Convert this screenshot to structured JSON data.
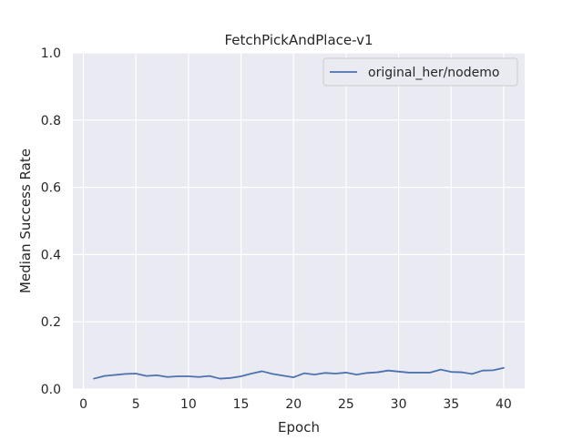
{
  "chart_data": {
    "type": "line",
    "title": "FetchPickAndPlace-v1",
    "xlabel": "Epoch",
    "ylabel": "Median Success Rate",
    "xlim": [
      -1,
      42
    ],
    "ylim": [
      0.0,
      1.0
    ],
    "xticks": [
      0,
      5,
      10,
      15,
      20,
      25,
      30,
      35,
      40
    ],
    "xtick_labels": [
      "0",
      "5",
      "10",
      "15",
      "20",
      "25",
      "30",
      "35",
      "40"
    ],
    "yticks": [
      0.0,
      0.2,
      0.4,
      0.6,
      0.8,
      1.0
    ],
    "ytick_labels": [
      "0.0",
      "0.2",
      "0.4",
      "0.6",
      "0.8",
      "1.0"
    ],
    "grid": true,
    "legend_position": "top-right",
    "background_color": "#eaeaf2",
    "series": [
      {
        "name": "original_her/nodemo",
        "color": "#4c72b0",
        "x": [
          1,
          2,
          3,
          4,
          5,
          6,
          7,
          8,
          9,
          10,
          11,
          12,
          13,
          14,
          15,
          16,
          17,
          18,
          19,
          20,
          21,
          22,
          23,
          24,
          25,
          26,
          27,
          28,
          29,
          30,
          31,
          32,
          33,
          34,
          35,
          36,
          37,
          38,
          39,
          40
        ],
        "y": [
          0.031,
          0.039,
          0.042,
          0.045,
          0.046,
          0.039,
          0.041,
          0.036,
          0.038,
          0.038,
          0.036,
          0.039,
          0.031,
          0.033,
          0.038,
          0.046,
          0.053,
          0.045,
          0.04,
          0.035,
          0.047,
          0.043,
          0.048,
          0.046,
          0.049,
          0.043,
          0.048,
          0.05,
          0.055,
          0.052,
          0.049,
          0.049,
          0.049,
          0.058,
          0.051,
          0.05,
          0.045,
          0.055,
          0.056,
          0.063
        ]
      }
    ]
  }
}
